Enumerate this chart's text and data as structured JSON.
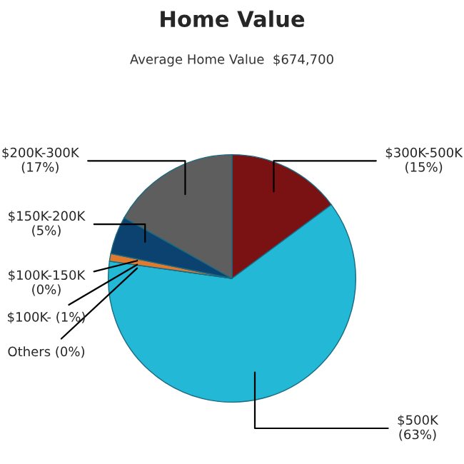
{
  "chart_data": {
    "type": "pie",
    "title": "Home Value",
    "subtitle": "Average Home Value  $674,700",
    "categories": [
      "$300K-500K",
      "$500K",
      "Others",
      "$100K-",
      "$100K-150K",
      "$150K-200K",
      "$200K-300K"
    ],
    "values": [
      15,
      63,
      0,
      1,
      0,
      5,
      17
    ],
    "value_labels": [
      "(15%)",
      "(63%)",
      "(0%)",
      "(1%)",
      "(0%)",
      "(5%)",
      "(17%)"
    ],
    "colors": [
      "#7a1214",
      "#22b8d6",
      "#f0f0f0",
      "#e07a30",
      "#d8d8d8",
      "#0c4270",
      "#5e5e5e"
    ]
  }
}
